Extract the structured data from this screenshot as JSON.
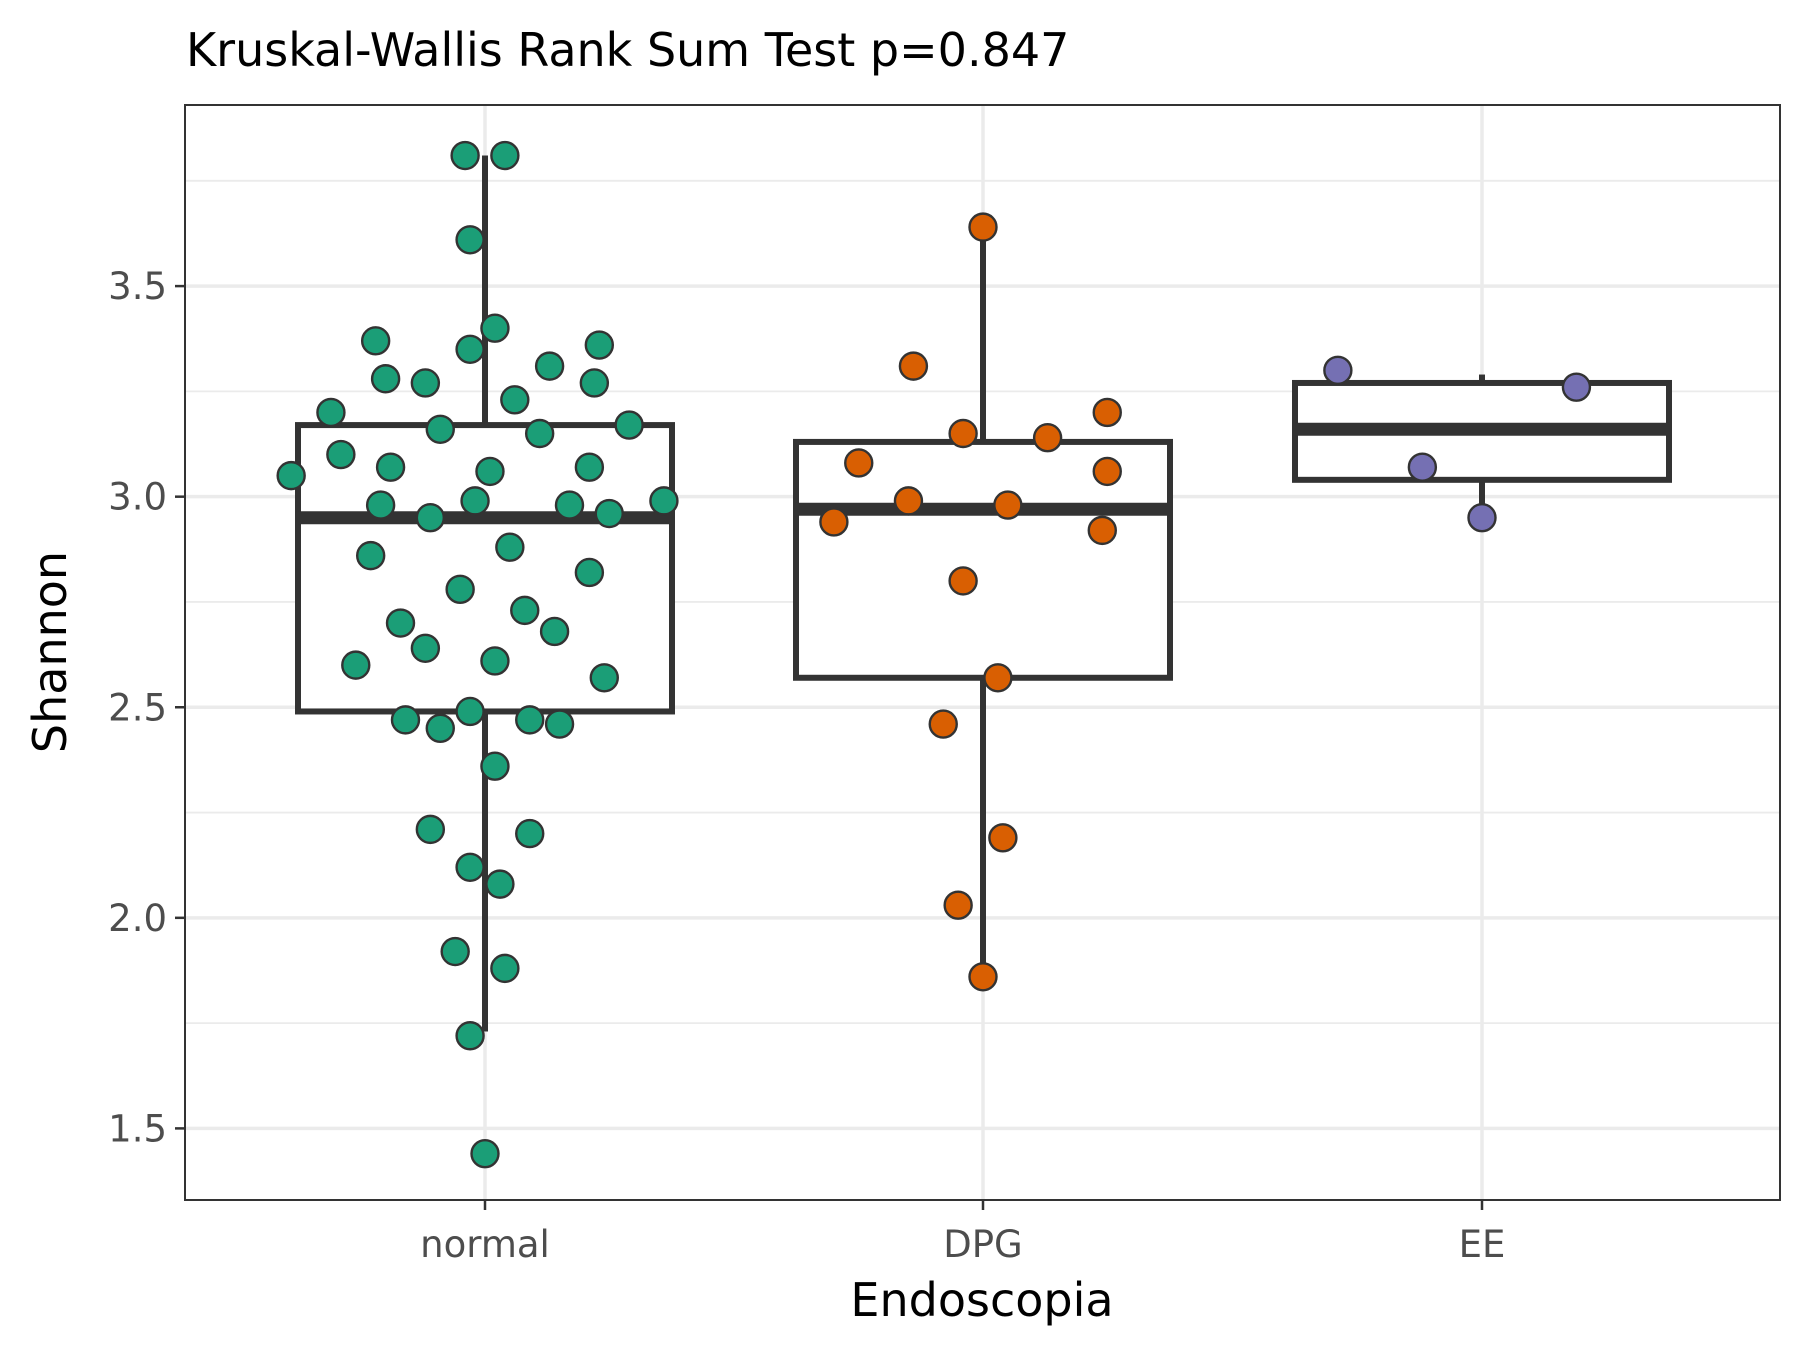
{
  "chart_data": {
    "type": "box",
    "title": "Kruskal-Wallis Rank Sum Test p=0.847",
    "xlabel": "Endoscopia",
    "ylabel": "Shannon",
    "ylim": [
      1.33,
      3.93
    ],
    "y_ticks": [
      1.5,
      2.0,
      2.5,
      3.0,
      3.5
    ],
    "y_tick_labels": [
      "1.5",
      "2.0",
      "2.5",
      "3.0",
      "3.5"
    ],
    "grid": true,
    "legend": "none",
    "categories": [
      "normal",
      "DPG",
      "EE"
    ],
    "colors": {
      "normal": "#1b9e77",
      "DPG": "#d95f02",
      "EE": "#7570b3"
    },
    "boxes": [
      {
        "group": "normal",
        "min": 1.73,
        "q1": 2.49,
        "median": 2.95,
        "q3": 3.17,
        "max": 3.81
      },
      {
        "group": "DPG",
        "min": 1.86,
        "q1": 2.57,
        "median": 2.97,
        "q3": 3.13,
        "max": 3.63
      },
      {
        "group": "EE",
        "min": 2.95,
        "q1": 3.04,
        "median": 3.16,
        "q3": 3.27,
        "max": 3.29
      }
    ],
    "points": [
      {
        "group": "normal",
        "jitter": -0.04,
        "y": 3.81
      },
      {
        "group": "normal",
        "jitter": 0.04,
        "y": 3.81
      },
      {
        "group": "normal",
        "jitter": -0.03,
        "y": 3.61
      },
      {
        "group": "normal",
        "jitter": 0.02,
        "y": 3.4
      },
      {
        "group": "normal",
        "jitter": -0.22,
        "y": 3.37
      },
      {
        "group": "normal",
        "jitter": 0.23,
        "y": 3.36
      },
      {
        "group": "normal",
        "jitter": -0.03,
        "y": 3.35
      },
      {
        "group": "normal",
        "jitter": 0.13,
        "y": 3.31
      },
      {
        "group": "normal",
        "jitter": -0.2,
        "y": 3.28
      },
      {
        "group": "normal",
        "jitter": -0.12,
        "y": 3.27
      },
      {
        "group": "normal",
        "jitter": 0.22,
        "y": 3.27
      },
      {
        "group": "normal",
        "jitter": 0.06,
        "y": 3.23
      },
      {
        "group": "normal",
        "jitter": -0.31,
        "y": 3.2
      },
      {
        "group": "normal",
        "jitter": 0.29,
        "y": 3.17
      },
      {
        "group": "normal",
        "jitter": -0.09,
        "y": 3.16
      },
      {
        "group": "normal",
        "jitter": 0.11,
        "y": 3.15
      },
      {
        "group": "normal",
        "jitter": -0.29,
        "y": 3.1
      },
      {
        "group": "normal",
        "jitter": -0.19,
        "y": 3.07
      },
      {
        "group": "normal",
        "jitter": 0.21,
        "y": 3.07
      },
      {
        "group": "normal",
        "jitter": 0.01,
        "y": 3.06
      },
      {
        "group": "normal",
        "jitter": -0.39,
        "y": 3.05
      },
      {
        "group": "normal",
        "jitter": -0.02,
        "y": 2.99
      },
      {
        "group": "normal",
        "jitter": 0.36,
        "y": 2.99
      },
      {
        "group": "normal",
        "jitter": -0.21,
        "y": 2.98
      },
      {
        "group": "normal",
        "jitter": 0.17,
        "y": 2.98
      },
      {
        "group": "normal",
        "jitter": 0.25,
        "y": 2.96
      },
      {
        "group": "normal",
        "jitter": -0.11,
        "y": 2.95
      },
      {
        "group": "normal",
        "jitter": 0.05,
        "y": 2.88
      },
      {
        "group": "normal",
        "jitter": -0.23,
        "y": 2.86
      },
      {
        "group": "normal",
        "jitter": 0.21,
        "y": 2.82
      },
      {
        "group": "normal",
        "jitter": -0.05,
        "y": 2.78
      },
      {
        "group": "normal",
        "jitter": 0.08,
        "y": 2.73
      },
      {
        "group": "normal",
        "jitter": -0.17,
        "y": 2.7
      },
      {
        "group": "normal",
        "jitter": 0.14,
        "y": 2.68
      },
      {
        "group": "normal",
        "jitter": -0.12,
        "y": 2.64
      },
      {
        "group": "normal",
        "jitter": 0.02,
        "y": 2.61
      },
      {
        "group": "normal",
        "jitter": -0.26,
        "y": 2.6
      },
      {
        "group": "normal",
        "jitter": 0.24,
        "y": 2.57
      },
      {
        "group": "normal",
        "jitter": -0.03,
        "y": 2.49
      },
      {
        "group": "normal",
        "jitter": -0.16,
        "y": 2.47
      },
      {
        "group": "normal",
        "jitter": 0.09,
        "y": 2.47
      },
      {
        "group": "normal",
        "jitter": 0.15,
        "y": 2.46
      },
      {
        "group": "normal",
        "jitter": -0.09,
        "y": 2.45
      },
      {
        "group": "normal",
        "jitter": 0.02,
        "y": 2.36
      },
      {
        "group": "normal",
        "jitter": 0.09,
        "y": 2.2
      },
      {
        "group": "normal",
        "jitter": -0.11,
        "y": 2.21
      },
      {
        "group": "normal",
        "jitter": -0.03,
        "y": 2.12
      },
      {
        "group": "normal",
        "jitter": 0.03,
        "y": 2.08
      },
      {
        "group": "normal",
        "jitter": -0.06,
        "y": 1.92
      },
      {
        "group": "normal",
        "jitter": 0.04,
        "y": 1.88
      },
      {
        "group": "normal",
        "jitter": -0.03,
        "y": 1.72
      },
      {
        "group": "normal",
        "jitter": 0.0,
        "y": 1.44
      },
      {
        "group": "DPG",
        "jitter": 0.0,
        "y": 3.64
      },
      {
        "group": "DPG",
        "jitter": -0.14,
        "y": 3.31
      },
      {
        "group": "DPG",
        "jitter": 0.25,
        "y": 3.2
      },
      {
        "group": "DPG",
        "jitter": -0.04,
        "y": 3.15
      },
      {
        "group": "DPG",
        "jitter": 0.13,
        "y": 3.14
      },
      {
        "group": "DPG",
        "jitter": -0.25,
        "y": 3.08
      },
      {
        "group": "DPG",
        "jitter": 0.25,
        "y": 3.06
      },
      {
        "group": "DPG",
        "jitter": -0.15,
        "y": 2.99
      },
      {
        "group": "DPG",
        "jitter": 0.05,
        "y": 2.98
      },
      {
        "group": "DPG",
        "jitter": -0.3,
        "y": 2.94
      },
      {
        "group": "DPG",
        "jitter": 0.24,
        "y": 2.92
      },
      {
        "group": "DPG",
        "jitter": -0.04,
        "y": 2.8
      },
      {
        "group": "DPG",
        "jitter": 0.03,
        "y": 2.57
      },
      {
        "group": "DPG",
        "jitter": -0.08,
        "y": 2.46
      },
      {
        "group": "DPG",
        "jitter": 0.04,
        "y": 2.19
      },
      {
        "group": "DPG",
        "jitter": -0.05,
        "y": 2.03
      },
      {
        "group": "DPG",
        "jitter": 0.0,
        "y": 1.86
      },
      {
        "group": "EE",
        "jitter": -0.29,
        "y": 3.3
      },
      {
        "group": "EE",
        "jitter": 0.19,
        "y": 3.26
      },
      {
        "group": "EE",
        "jitter": -0.12,
        "y": 3.07
      },
      {
        "group": "EE",
        "jitter": 0.0,
        "y": 2.95
      }
    ]
  }
}
